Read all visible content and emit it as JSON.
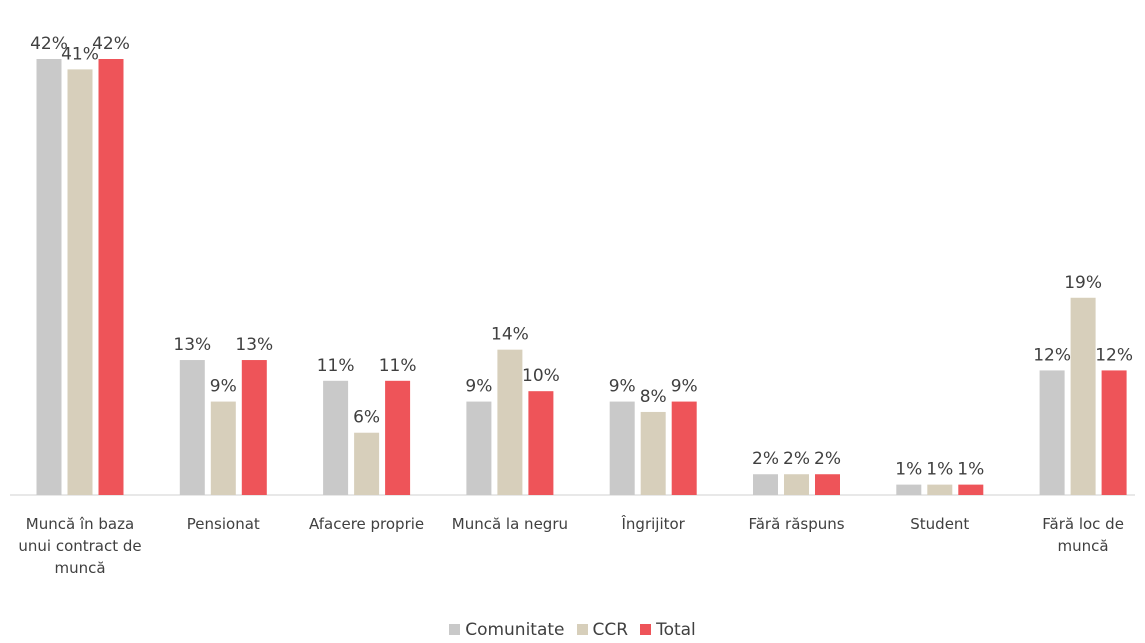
{
  "chart_data": {
    "type": "bar",
    "categories": [
      "Muncă în baza unui contract de muncă",
      "Pensionat",
      "Afacere proprie",
      "Muncă la negru",
      "Îngrijitor",
      "Fără răspuns",
      "Student",
      "Fără loc de muncă"
    ],
    "series": [
      {
        "name": "Comunitate",
        "color": "#c9c9c9",
        "values": [
          42,
          13,
          11,
          9,
          9,
          2,
          1,
          12
        ],
        "value_labels": [
          "42%",
          "13%",
          "11%",
          "9%",
          "9%",
          "2%",
          "1%",
          "12%"
        ]
      },
      {
        "name": "CCR",
        "color": "#d7cfbb",
        "values": [
          41,
          9,
          6,
          14,
          8,
          2,
          1,
          19
        ],
        "value_labels": [
          "41%",
          "9%",
          "6%",
          "14%",
          "8%",
          "2%",
          "1%",
          "19%"
        ]
      },
      {
        "name": "Total",
        "color": "#ee5459",
        "values": [
          42,
          13,
          11,
          10,
          9,
          2,
          1,
          12
        ],
        "value_labels": [
          "42%",
          "13%",
          "11%",
          "10%",
          "9%",
          "2%",
          "1%",
          "12%"
        ]
      }
    ],
    "legend": "bottom"
  }
}
